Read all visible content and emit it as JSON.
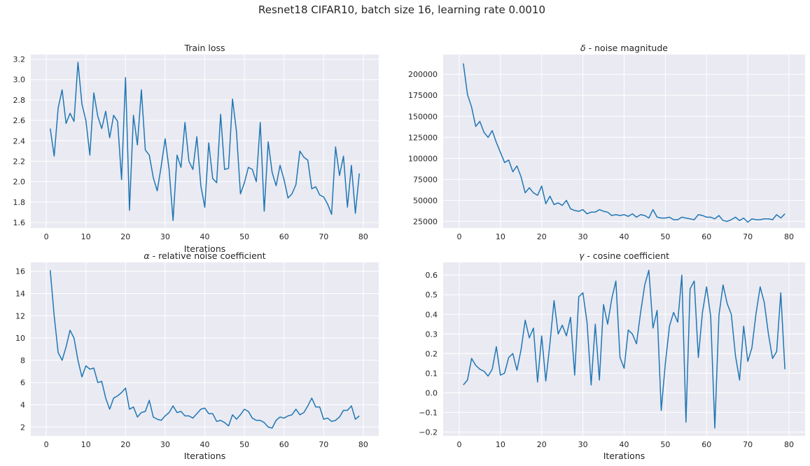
{
  "figure": {
    "title": "Resnet18 CIFAR10, batch size 16, learning rate 0.0010"
  },
  "colors": {
    "background": "#eaeaf2",
    "grid": "#ffffff",
    "line": "#1f77b4",
    "text": "#262626"
  },
  "chart_data": [
    {
      "type": "line",
      "title": "Train loss",
      "xlabel": "Iterations",
      "ylabel": "",
      "xlim": [
        -3.9,
        83.9
      ],
      "ylim": [
        1.545,
        3.245
      ],
      "xticks": [
        0,
        10,
        20,
        30,
        40,
        50,
        60,
        70,
        80
      ],
      "yticks": [
        1.6,
        1.8,
        2.0,
        2.2,
        2.4,
        2.6,
        2.8,
        3.0,
        3.2
      ],
      "ytick_labels": [
        "1.6",
        "1.8",
        "2.0",
        "2.2",
        "2.4",
        "2.6",
        "2.8",
        "3.0",
        "3.2"
      ],
      "x": [
        1,
        2,
        3,
        4,
        5,
        6,
        7,
        8,
        9,
        10,
        11,
        12,
        13,
        14,
        15,
        16,
        17,
        18,
        19,
        20,
        21,
        22,
        23,
        24,
        25,
        26,
        27,
        28,
        29,
        30,
        31,
        32,
        33,
        34,
        35,
        36,
        37,
        38,
        39,
        40,
        41,
        42,
        43,
        44,
        45,
        46,
        47,
        48,
        49,
        50,
        51,
        52,
        53,
        54,
        55,
        56,
        57,
        58,
        59,
        60,
        61,
        62,
        63,
        64,
        65,
        66,
        67,
        68,
        69,
        70,
        71,
        72,
        73,
        74,
        75,
        76,
        77,
        78,
        79
      ],
      "y": [
        2.52,
        2.25,
        2.72,
        2.9,
        2.57,
        2.67,
        2.59,
        3.17,
        2.76,
        2.6,
        2.26,
        2.87,
        2.64,
        2.52,
        2.69,
        2.43,
        2.65,
        2.59,
        2.02,
        3.02,
        1.72,
        2.65,
        2.36,
        2.9,
        2.31,
        2.26,
        2.04,
        1.91,
        2.15,
        2.42,
        2.12,
        1.62,
        2.26,
        2.14,
        2.58,
        2.2,
        2.12,
        2.44,
        1.96,
        1.75,
        2.38,
        2.03,
        1.99,
        2.66,
        2.12,
        2.13,
        2.81,
        2.49,
        1.88,
        1.99,
        2.14,
        2.12,
        2.0,
        2.58,
        1.71,
        2.39,
        2.09,
        1.96,
        2.16,
        2.02,
        1.84,
        1.88,
        1.97,
        2.3,
        2.24,
        2.21,
        1.93,
        1.95,
        1.87,
        1.85,
        1.78,
        1.68,
        2.34,
        2.06,
        2.25,
        1.75,
        2.16,
        1.69,
        2.08
      ]
    },
    {
      "type": "line",
      "title": "δ - noise magnitude",
      "title_symbol": "δ",
      "title_rest": " - noise magnitude",
      "xlabel": "",
      "ylabel": "",
      "xlim": [
        -3.9,
        83.9
      ],
      "ylim": [
        17000,
        223500
      ],
      "xticks": [
        0,
        10,
        20,
        30,
        40,
        50,
        60,
        70,
        80
      ],
      "yticks": [
        25000,
        50000,
        75000,
        100000,
        125000,
        150000,
        175000,
        200000
      ],
      "ytick_labels": [
        "25000",
        "50000",
        "75000",
        "100000",
        "125000",
        "150000",
        "175000",
        "200000"
      ],
      "x": [
        1,
        2,
        3,
        4,
        5,
        6,
        7,
        8,
        9,
        10,
        11,
        12,
        13,
        14,
        15,
        16,
        17,
        18,
        19,
        20,
        21,
        22,
        23,
        24,
        25,
        26,
        27,
        28,
        29,
        30,
        31,
        32,
        33,
        34,
        35,
        36,
        37,
        38,
        39,
        40,
        41,
        42,
        43,
        44,
        45,
        46,
        47,
        48,
        49,
        50,
        51,
        52,
        53,
        54,
        55,
        56,
        57,
        58,
        59,
        60,
        61,
        62,
        63,
        64,
        65,
        66,
        67,
        68,
        69,
        70,
        71,
        72,
        73,
        74,
        75,
        76,
        77,
        78,
        79
      ],
      "y": [
        213000,
        176000,
        161000,
        138000,
        144000,
        131000,
        125000,
        133000,
        119000,
        107000,
        95000,
        98000,
        84000,
        91000,
        78000,
        59000,
        65000,
        59000,
        56000,
        67000,
        46000,
        55000,
        45000,
        47000,
        44000,
        50000,
        40000,
        38000,
        37000,
        39000,
        34000,
        36000,
        36000,
        39000,
        37000,
        36000,
        32000,
        33000,
        32000,
        33000,
        31000,
        34000,
        30000,
        33000,
        32000,
        29000,
        39000,
        30000,
        29000,
        29000,
        30000,
        27000,
        27000,
        30000,
        29000,
        28000,
        27000,
        33000,
        32000,
        30000,
        30000,
        28000,
        32000,
        26000,
        25000,
        27000,
        30000,
        26000,
        29000,
        24000,
        28000,
        27000,
        27000,
        28000,
        28000,
        27000,
        33000,
        29000,
        34000
      ]
    },
    {
      "type": "line",
      "title": "α - relative noise coefficient",
      "title_symbol": "α",
      "title_rest": " - relative noise coefficient",
      "xlabel": "Iterations",
      "ylabel": "",
      "xlim": [
        -3.9,
        83.9
      ],
      "ylim": [
        1.2,
        16.8
      ],
      "xticks": [
        0,
        10,
        20,
        30,
        40,
        50,
        60,
        70,
        80
      ],
      "yticks": [
        2,
        4,
        6,
        8,
        10,
        12,
        14,
        16
      ],
      "ytick_labels": [
        "2",
        "4",
        "6",
        "8",
        "10",
        "12",
        "14",
        "16"
      ],
      "x": [
        1,
        2,
        3,
        4,
        5,
        6,
        7,
        8,
        9,
        10,
        11,
        12,
        13,
        14,
        15,
        16,
        17,
        18,
        19,
        20,
        21,
        22,
        23,
        24,
        25,
        26,
        27,
        28,
        29,
        30,
        31,
        32,
        33,
        34,
        35,
        36,
        37,
        38,
        39,
        40,
        41,
        42,
        43,
        44,
        45,
        46,
        47,
        48,
        49,
        50,
        51,
        52,
        53,
        54,
        55,
        56,
        57,
        58,
        59,
        60,
        61,
        62,
        63,
        64,
        65,
        66,
        67,
        68,
        69,
        70,
        71,
        72,
        73,
        74,
        75,
        76,
        77,
        78,
        79
      ],
      "y": [
        16.1,
        12.0,
        8.7,
        8.0,
        9.2,
        10.7,
        10.0,
        8.0,
        6.5,
        7.5,
        7.2,
        7.3,
        6.0,
        6.1,
        4.6,
        3.6,
        4.6,
        4.8,
        5.1,
        5.5,
        3.6,
        3.8,
        2.9,
        3.3,
        3.4,
        4.4,
        2.9,
        2.7,
        2.6,
        3.0,
        3.3,
        3.9,
        3.3,
        3.4,
        3.0,
        3.0,
        2.8,
        3.2,
        3.6,
        3.7,
        3.2,
        3.2,
        2.5,
        2.6,
        2.4,
        2.1,
        3.1,
        2.7,
        3.1,
        3.6,
        3.4,
        2.8,
        2.6,
        2.6,
        2.4,
        2.0,
        1.9,
        2.6,
        2.9,
        2.8,
        3.0,
        3.1,
        3.6,
        3.1,
        3.3,
        3.9,
        4.6,
        3.8,
        3.8,
        2.7,
        2.8,
        2.5,
        2.6,
        2.9,
        3.5,
        3.5,
        3.9,
        2.7,
        3.0
      ]
    },
    {
      "type": "line",
      "title": "γ - cosine coefficient",
      "title_symbol": "γ",
      "title_rest": " - cosine coefficient",
      "xlabel": "Iterations",
      "ylabel": "",
      "xlim": [
        -3.9,
        83.9
      ],
      "ylim": [
        -0.22,
        0.665
      ],
      "xticks": [
        0,
        10,
        20,
        30,
        40,
        50,
        60,
        70,
        80
      ],
      "yticks": [
        -0.2,
        -0.1,
        0.0,
        0.1,
        0.2,
        0.3,
        0.4,
        0.5,
        0.6
      ],
      "ytick_labels": [
        "−0.2",
        "−0.1",
        "0.0",
        "0.1",
        "0.2",
        "0.3",
        "0.4",
        "0.5",
        "0.6"
      ],
      "x": [
        1,
        2,
        3,
        4,
        5,
        6,
        7,
        8,
        9,
        10,
        11,
        12,
        13,
        14,
        15,
        16,
        17,
        18,
        19,
        20,
        21,
        22,
        23,
        24,
        25,
        26,
        27,
        28,
        29,
        30,
        31,
        32,
        33,
        34,
        35,
        36,
        37,
        38,
        39,
        40,
        41,
        42,
        43,
        44,
        45,
        46,
        47,
        48,
        49,
        50,
        51,
        52,
        53,
        54,
        55,
        56,
        57,
        58,
        59,
        60,
        61,
        62,
        63,
        64,
        65,
        66,
        67,
        68,
        69,
        70,
        71,
        72,
        73,
        74,
        75,
        76,
        77,
        78,
        79
      ],
      "y": [
        0.04,
        0.065,
        0.175,
        0.14,
        0.12,
        0.11,
        0.085,
        0.12,
        0.235,
        0.09,
        0.1,
        0.18,
        0.2,
        0.115,
        0.22,
        0.37,
        0.28,
        0.33,
        0.055,
        0.29,
        0.06,
        0.25,
        0.47,
        0.3,
        0.345,
        0.29,
        0.385,
        0.09,
        0.49,
        0.51,
        0.36,
        0.04,
        0.35,
        0.065,
        0.45,
        0.35,
        0.48,
        0.57,
        0.18,
        0.125,
        0.32,
        0.3,
        0.25,
        0.41,
        0.55,
        0.625,
        0.33,
        0.42,
        -0.09,
        0.15,
        0.34,
        0.41,
        0.36,
        0.6,
        -0.15,
        0.53,
        0.57,
        0.18,
        0.41,
        0.54,
        0.39,
        -0.18,
        0.395,
        0.55,
        0.455,
        0.4,
        0.19,
        0.065,
        0.34,
        0.16,
        0.23,
        0.405,
        0.54,
        0.46,
        0.3,
        0.175,
        0.21,
        0.51,
        0.12
      ]
    }
  ]
}
